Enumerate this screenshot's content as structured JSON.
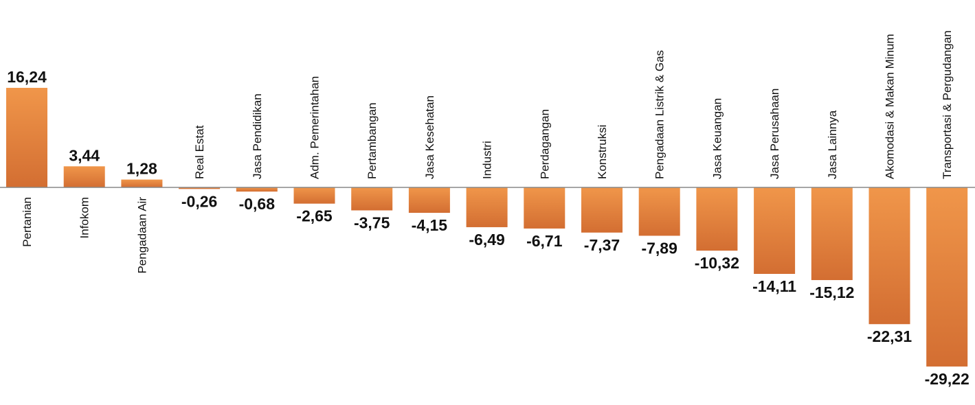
{
  "chart_data": {
    "type": "bar",
    "categories": [
      "Pertanian",
      "Infokom",
      "Pengadaan Air",
      "Real Estat",
      "Jasa Pendidikan",
      "Adm. Pemerintahan",
      "Pertambangan",
      "Jasa Kesehatan",
      "Industri",
      "Perdagangan",
      "Konstruksi",
      "Pengadaan Listrik & Gas",
      "Jasa Keuangan",
      "Jasa Perusahaan",
      "Jasa Lainnya",
      "Akomodasi & Makan Minum",
      "Transportasi & Pergudangan"
    ],
    "values": [
      16.24,
      3.44,
      1.28,
      -0.26,
      -0.68,
      -2.65,
      -3.75,
      -4.15,
      -6.49,
      -6.71,
      -7.37,
      -7.89,
      -10.32,
      -14.11,
      -15.12,
      -22.31,
      -29.22
    ],
    "value_labels": [
      "16,24",
      "3,44",
      "1,28",
      "-0,26",
      "-0,68",
      "-2,65",
      "-3,75",
      "-4,15",
      "-6,49",
      "-6,71",
      "-7,37",
      "-7,89",
      "-10,32",
      "-14,11",
      "-15,12",
      "-22,31",
      "-29,22"
    ],
    "ylim": [
      -29.22,
      16.24
    ],
    "grid": false,
    "legend": "none",
    "colors": {
      "bar_light": "#F0964A",
      "bar_dark": "#D36E32",
      "axis": "#888888",
      "text": "#111111"
    }
  }
}
